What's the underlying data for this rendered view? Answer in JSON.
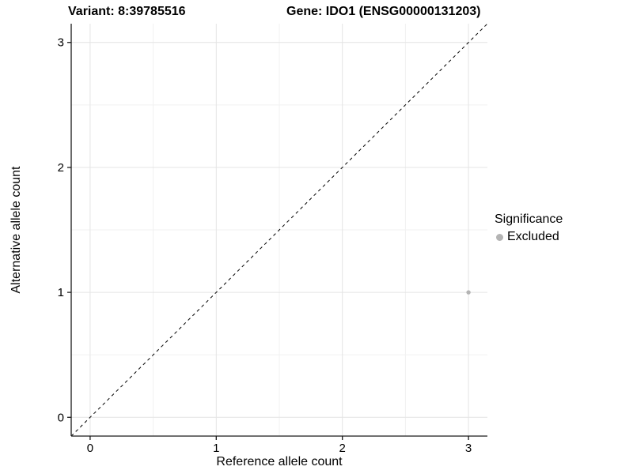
{
  "header": {
    "title_left": "Variant: 8:39785516",
    "title_right": "Gene: IDO1 (ENSG00000131203)"
  },
  "chart_data": {
    "type": "scatter",
    "title": "Variant: 8:39785516 — Gene: IDO1 (ENSG00000131203)",
    "xlabel": "Reference allele count",
    "ylabel": "Alternative allele count",
    "xlim": [
      -0.15,
      3.15
    ],
    "ylim": [
      -0.15,
      3.15
    ],
    "x_ticks": [
      0,
      1,
      2,
      3
    ],
    "y_ticks": [
      0,
      1,
      2,
      3
    ],
    "minor_ticks": [
      0.5,
      1.5,
      2.5
    ],
    "grid": true,
    "reference_line": {
      "equation": "y = x",
      "style": "dashed",
      "color": "#000000"
    },
    "series": [
      {
        "name": "Excluded",
        "color": "#b4b4b4",
        "points": [
          {
            "x": 3,
            "y": 1
          }
        ]
      }
    ],
    "legend": {
      "title": "Significance",
      "position": "right",
      "items": [
        {
          "label": "Excluded",
          "color": "#b4b4b4"
        }
      ]
    }
  },
  "colors": {
    "background": "#ffffff",
    "grid_major": "#e4e4e4",
    "grid_minor": "#f1f1f1",
    "axis": "#1a1a1a",
    "text": "#000000"
  }
}
